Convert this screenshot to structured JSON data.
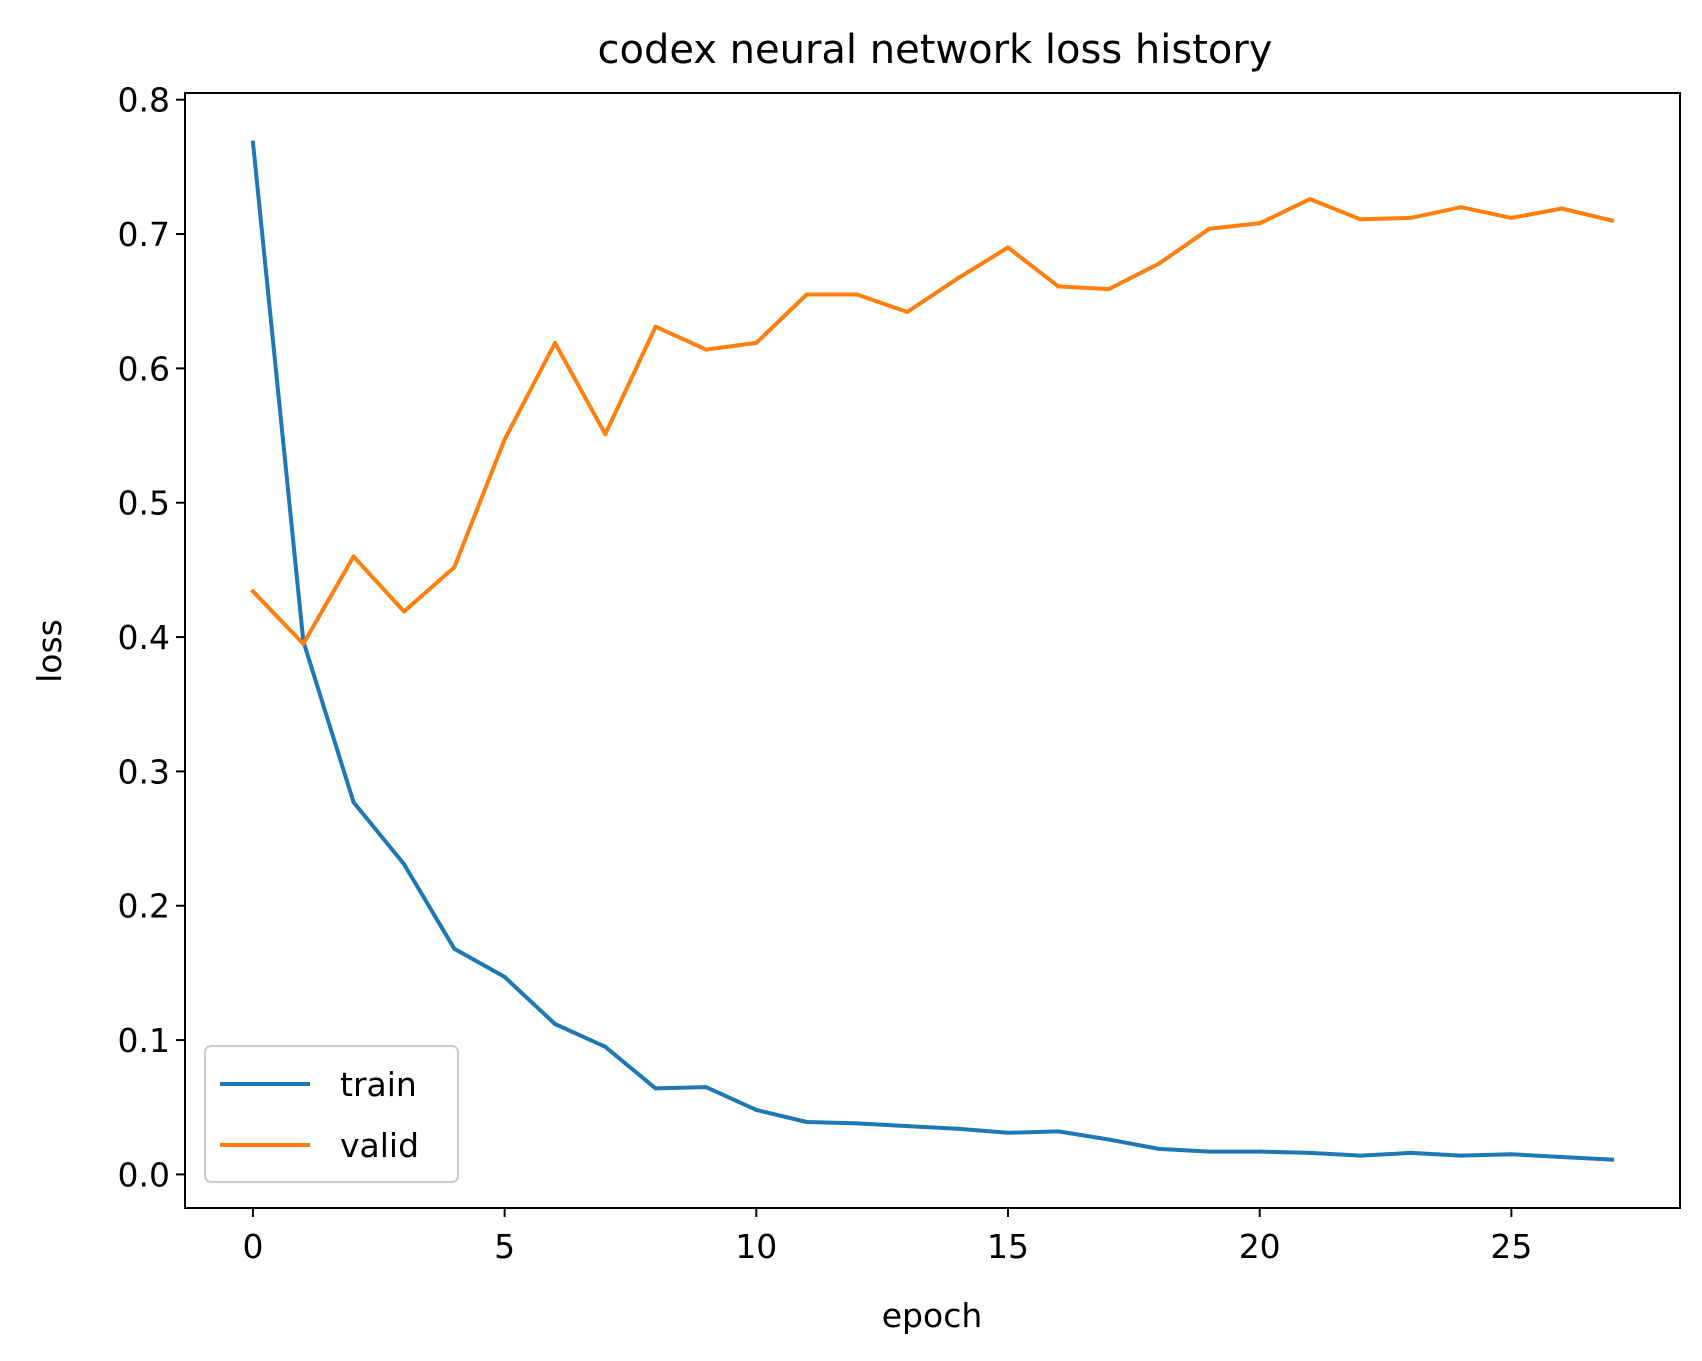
{
  "chart_data": {
    "type": "line",
    "title": "codex neural network loss history",
    "xlabel": "epoch",
    "ylabel": "loss",
    "xlim": [
      -1.35,
      28.35
    ],
    "ylim": [
      -0.025,
      0.805
    ],
    "xticks": [
      0,
      5,
      10,
      15,
      20,
      25
    ],
    "yticks": [
      0.0,
      0.1,
      0.2,
      0.3,
      0.4,
      0.5,
      0.6,
      0.7,
      0.8
    ],
    "ytick_labels": [
      "0.0",
      "0.1",
      "0.2",
      "0.3",
      "0.4",
      "0.5",
      "0.6",
      "0.7",
      "0.8"
    ],
    "grid": false,
    "legend_position": "lower left",
    "x": [
      0,
      1,
      2,
      3,
      4,
      5,
      6,
      7,
      8,
      9,
      10,
      11,
      12,
      13,
      14,
      15,
      16,
      17,
      18,
      19,
      20,
      21,
      22,
      23,
      24,
      25,
      26,
      27
    ],
    "series": [
      {
        "name": "train",
        "color": "#1f77b4",
        "values": [
          0.768,
          0.397,
          0.277,
          0.231,
          0.168,
          0.147,
          0.112,
          0.095,
          0.064,
          0.065,
          0.048,
          0.039,
          0.038,
          0.036,
          0.034,
          0.031,
          0.032,
          0.026,
          0.019,
          0.017,
          0.017,
          0.016,
          0.014,
          0.016,
          0.014,
          0.015,
          0.013,
          0.011
        ]
      },
      {
        "name": "valid",
        "color": "#ff7f0e",
        "values": [
          0.434,
          0.395,
          0.46,
          0.419,
          0.452,
          0.547,
          0.619,
          0.551,
          0.631,
          0.614,
          0.619,
          0.655,
          0.655,
          0.642,
          0.667,
          0.69,
          0.661,
          0.659,
          0.678,
          0.704,
          0.708,
          0.726,
          0.711,
          0.712,
          0.72,
          0.712,
          0.719,
          0.71
        ]
      }
    ]
  }
}
